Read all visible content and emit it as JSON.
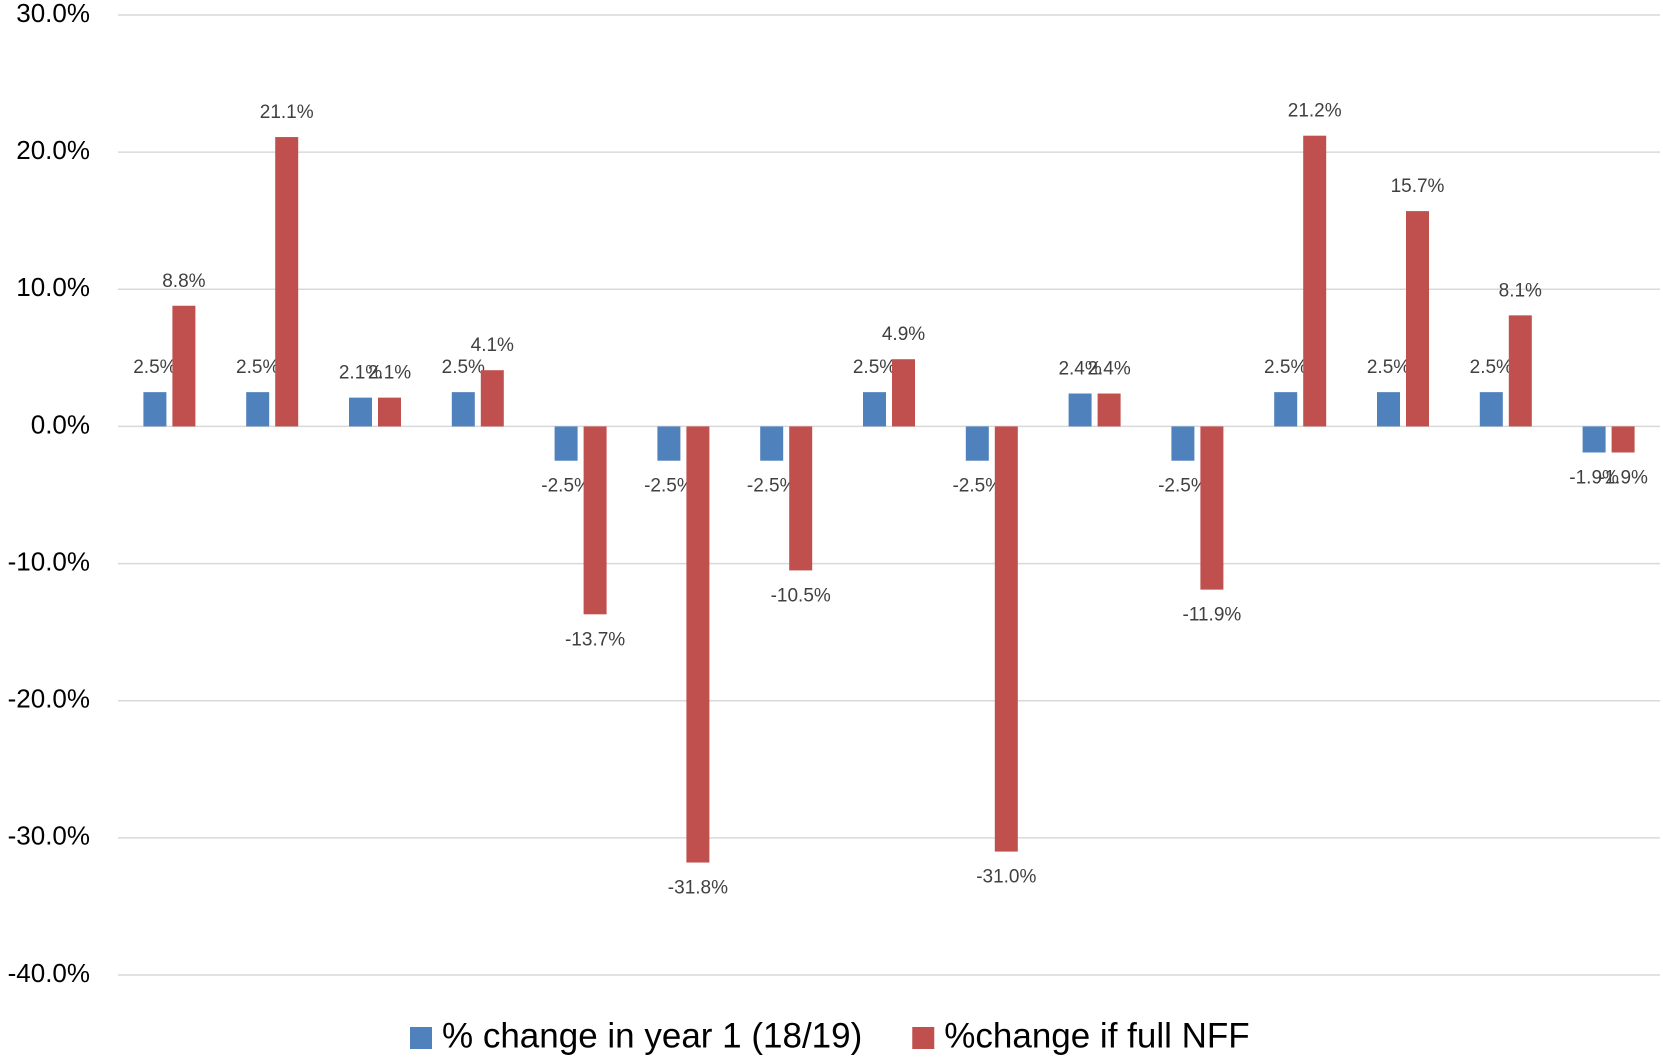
{
  "chart_data": {
    "type": "bar",
    "categories": [
      null,
      null,
      null,
      null,
      null,
      null,
      null,
      null,
      null,
      null,
      null,
      null,
      null,
      null,
      null
    ],
    "series": [
      {
        "name": "% change in year 1 (18/19)",
        "color": "#4f81bd",
        "values": [
          2.5,
          2.5,
          2.1,
          2.5,
          -2.5,
          -2.5,
          -2.5,
          2.5,
          -2.5,
          2.4,
          -2.5,
          2.5,
          2.5,
          2.5,
          -1.9
        ],
        "value_labels": [
          "2.5%",
          "2.5%",
          "2.1%",
          "2.5%",
          "-2.5%",
          "-2.5%",
          "-2.5%",
          "2.5%",
          "-2.5%",
          "2.4%",
          "-2.5%",
          "2.5%",
          "2.5%",
          "2.5%",
          "-1.9%"
        ]
      },
      {
        "name": "%change if full NFF",
        "color": "#c0504d",
        "values": [
          8.8,
          21.1,
          2.1,
          4.1,
          -13.7,
          -31.8,
          -10.5,
          4.9,
          -31.0,
          2.4,
          -11.9,
          21.2,
          15.7,
          8.1,
          -1.9
        ],
        "value_labels": [
          "8.8%",
          "21.1%",
          "2.1%",
          "4.1%",
          "-13.7%",
          "-31.8%",
          "-10.5%",
          "4.9%",
          "-31.0%",
          "2.4%",
          "-11.9%",
          "21.2%",
          "15.7%",
          "8.1%",
          "-1.9%"
        ]
      }
    ],
    "ylim": [
      -40,
      30
    ],
    "yticks": [
      {
        "value": -40,
        "label": "-40.0%"
      },
      {
        "value": -30,
        "label": "-30.0%"
      },
      {
        "value": -20,
        "label": "-20.0%"
      },
      {
        "value": -10,
        "label": "-10.0%"
      },
      {
        "value": 0,
        "label": "0.0%"
      },
      {
        "value": 10,
        "label": "10.0%"
      },
      {
        "value": 20,
        "label": "20.0%"
      },
      {
        "value": 30,
        "label": "30.0%"
      }
    ],
    "grid": true,
    "legend": "bottom"
  }
}
